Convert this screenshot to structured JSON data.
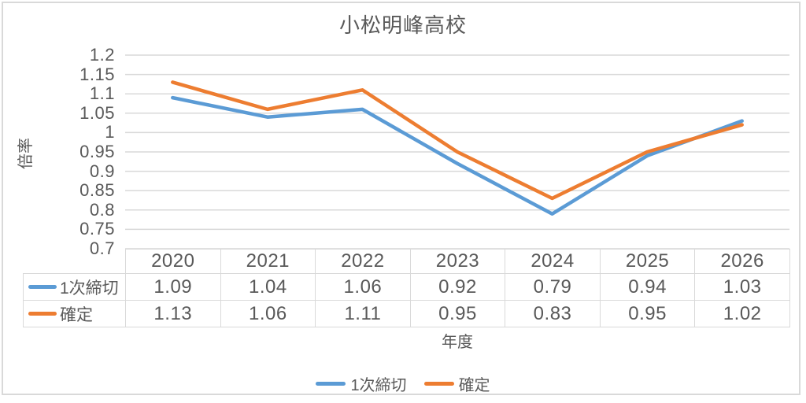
{
  "chart_data": {
    "type": "line",
    "title": "小松明峰高校",
    "xlabel": "年度",
    "ylabel": "倍率",
    "categories": [
      "2020",
      "2021",
      "2022",
      "2023",
      "2024",
      "2025",
      "2026"
    ],
    "series": [
      {
        "name": "1次締切",
        "color": "#5B9BD5",
        "values": [
          1.09,
          1.04,
          1.06,
          0.92,
          0.79,
          0.94,
          1.03
        ]
      },
      {
        "name": "確定",
        "color": "#ED7D31",
        "values": [
          1.13,
          1.06,
          1.11,
          0.95,
          0.83,
          0.95,
          1.02
        ]
      }
    ],
    "ylim": [
      0.7,
      1.2
    ],
    "yticks": [
      "1.2",
      "1.15",
      "1.1",
      "1.05",
      "1",
      "0.95",
      "0.9",
      "0.85",
      "0.8",
      "0.75",
      "0.7"
    ],
    "grid": true,
    "legend_position": "bottom",
    "data_table_shown": true
  },
  "colors": {
    "text": "#595959",
    "gridline": "#D9D9D9",
    "border": "#D9D9D9"
  },
  "legend": {
    "items": [
      {
        "label": "1次締切",
        "color": "#5B9BD5"
      },
      {
        "label": "確定",
        "color": "#ED7D31"
      }
    ]
  }
}
